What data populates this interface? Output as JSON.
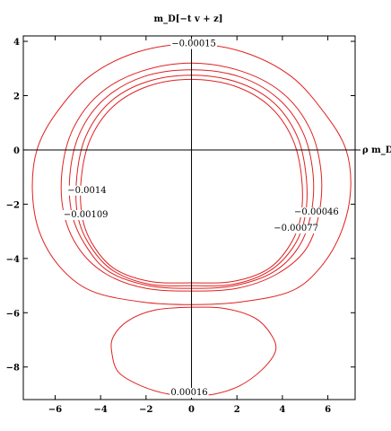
{
  "chart_data": {
    "type": "contour",
    "title_top": "m_D[−t v + z]",
    "xlabel": "ρ m_D",
    "x_ticks": [
      -6,
      -4,
      -2,
      0,
      2,
      4,
      6
    ],
    "y_ticks": [
      4,
      2,
      0,
      -2,
      -4,
      -6,
      -8
    ],
    "xlim": [
      -7.4,
      7.2
    ],
    "ylim": [
      -9.2,
      4.2
    ],
    "grid": false,
    "line_color": "#e02020",
    "contours": [
      {
        "value_label": "−0.00015",
        "level": -0.00015,
        "type": "closed",
        "points": [
          [
            0,
            3.9
          ],
          [
            2.3,
            3.6
          ],
          [
            4.4,
            2.7
          ],
          [
            5.9,
            1.3
          ],
          [
            6.8,
            0
          ],
          [
            7.0,
            -1.5
          ],
          [
            6.6,
            -3
          ],
          [
            5.7,
            -4.3
          ],
          [
            4.4,
            -5.2
          ],
          [
            2.2,
            -5.6
          ],
          [
            0,
            -5.7
          ],
          [
            -2.2,
            -5.6
          ],
          [
            -4.4,
            -5.2
          ],
          [
            -5.8,
            -4.3
          ],
          [
            -6.7,
            -3
          ],
          [
            -7.0,
            -1.5
          ],
          [
            -6.8,
            0
          ],
          [
            -6.0,
            1.3
          ],
          [
            -4.5,
            2.7
          ],
          [
            -2.4,
            3.6
          ]
        ]
      },
      {
        "value_label": "−0.0014",
        "level": -0.0014,
        "type": "closed",
        "points": [
          [
            0,
            3.2
          ],
          [
            2.2,
            2.9
          ],
          [
            4.0,
            2.1
          ],
          [
            5.2,
            0.8
          ],
          [
            5.7,
            -0.8
          ],
          [
            5.6,
            -2.4
          ],
          [
            5.0,
            -3.7
          ],
          [
            3.7,
            -4.6
          ],
          [
            2.0,
            -5.1
          ],
          [
            0,
            -5.2
          ],
          [
            -2.0,
            -5.1
          ],
          [
            -3.7,
            -4.6
          ],
          [
            -4.9,
            -3.7
          ],
          [
            -5.6,
            -2.4
          ],
          [
            -5.7,
            -0.8
          ],
          [
            -5.2,
            0.8
          ],
          [
            -4.0,
            2.1
          ],
          [
            -2.2,
            2.9
          ]
        ]
      },
      {
        "value_label": "−0.00109",
        "level": -0.00109,
        "type": "closed",
        "points": [
          [
            0,
            2.95
          ],
          [
            2.1,
            2.7
          ],
          [
            3.8,
            1.9
          ],
          [
            4.9,
            0.65
          ],
          [
            5.35,
            -0.9
          ],
          [
            5.25,
            -2.4
          ],
          [
            4.7,
            -3.6
          ],
          [
            3.6,
            -4.5
          ],
          [
            1.9,
            -5.0
          ],
          [
            0,
            -5.1
          ],
          [
            -1.9,
            -5.0
          ],
          [
            -3.6,
            -4.5
          ],
          [
            -4.6,
            -3.6
          ],
          [
            -5.25,
            -2.4
          ],
          [
            -5.35,
            -0.9
          ],
          [
            -4.9,
            0.65
          ],
          [
            -3.8,
            1.9
          ],
          [
            -2.1,
            2.7
          ]
        ]
      },
      {
        "value_label": "−0.00046",
        "level": -0.00046,
        "type": "closed",
        "points": [
          [
            0,
            2.75
          ],
          [
            2.0,
            2.5
          ],
          [
            3.6,
            1.75
          ],
          [
            4.65,
            0.5
          ],
          [
            5.05,
            -1.0
          ],
          [
            5.0,
            -2.45
          ],
          [
            4.5,
            -3.55
          ],
          [
            3.45,
            -4.45
          ],
          [
            1.85,
            -4.95
          ],
          [
            0,
            -5.0
          ],
          [
            -1.85,
            -4.95
          ],
          [
            -3.45,
            -4.45
          ],
          [
            -4.45,
            -3.55
          ],
          [
            -5.0,
            -2.45
          ],
          [
            -5.05,
            -1.0
          ],
          [
            -4.65,
            0.5
          ],
          [
            -3.6,
            1.75
          ],
          [
            -2.0,
            2.5
          ]
        ]
      },
      {
        "value_label": "−0.00077",
        "level": -0.00077,
        "type": "closed",
        "points": [
          [
            0,
            2.6
          ],
          [
            1.9,
            2.35
          ],
          [
            3.45,
            1.6
          ],
          [
            4.45,
            0.4
          ],
          [
            4.85,
            -1.05
          ],
          [
            4.8,
            -2.5
          ],
          [
            4.3,
            -3.55
          ],
          [
            3.35,
            -4.4
          ],
          [
            1.8,
            -4.85
          ],
          [
            0,
            -4.9
          ],
          [
            -1.8,
            -4.85
          ],
          [
            -3.35,
            -4.4
          ],
          [
            -4.3,
            -3.55
          ],
          [
            -4.8,
            -2.5
          ],
          [
            -4.85,
            -1.05
          ],
          [
            -4.45,
            0.4
          ],
          [
            -3.45,
            1.6
          ],
          [
            -1.9,
            2.35
          ]
        ]
      },
      {
        "value_label": "0.00016",
        "level": 0.00016,
        "type": "closed",
        "points": [
          [
            0,
            -5.8
          ],
          [
            1.5,
            -5.85
          ],
          [
            2.8,
            -6.2
          ],
          [
            3.5,
            -6.8
          ],
          [
            3.7,
            -7.4
          ],
          [
            3.1,
            -8.1
          ],
          [
            2.1,
            -8.7
          ],
          [
            1.0,
            -9.0
          ],
          [
            0,
            -9.05
          ],
          [
            -1.0,
            -9.0
          ],
          [
            -2.2,
            -8.7
          ],
          [
            -3.2,
            -8.2
          ],
          [
            -3.5,
            -7.5
          ],
          [
            -3.45,
            -6.9
          ],
          [
            -2.8,
            -6.3
          ],
          [
            -1.6,
            -5.9
          ]
        ]
      }
    ],
    "labels": [
      {
        "text": "−0.00015",
        "x": 0.1,
        "y": 3.95
      },
      {
        "text": "−0.0014",
        "x": -4.6,
        "y": -1.45
      },
      {
        "text": "−0.00109",
        "x": -4.65,
        "y": -2.35
      },
      {
        "text": "−0.00046",
        "x": 5.5,
        "y": -2.25
      },
      {
        "text": "−0.00077",
        "x": 4.6,
        "y": -2.85
      },
      {
        "text": "0.00016",
        "x": -0.1,
        "y": -8.9
      }
    ]
  }
}
